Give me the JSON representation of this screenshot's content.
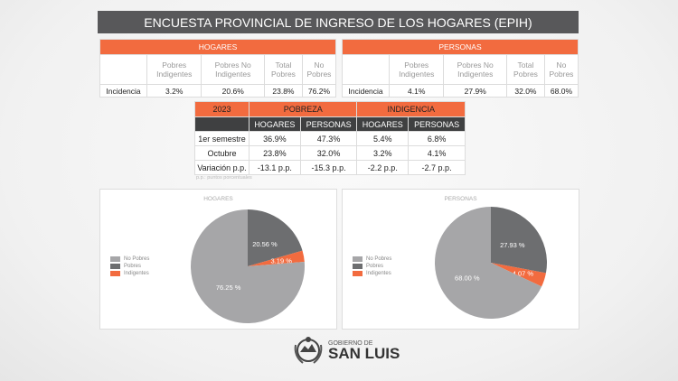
{
  "title": "ENCUESTA PROVINCIAL DE INGRESO DE LOS HOGARES (EPIH)",
  "hogares_table": {
    "header": "HOGARES",
    "columns": [
      "Pobres Indigentes",
      "Pobres No Indigentes",
      "Total Pobres",
      "No Pobres"
    ],
    "row_label": "Incidencia",
    "values": [
      "3.2%",
      "20.6%",
      "23.8%",
      "76.2%"
    ]
  },
  "personas_table": {
    "header": "PERSONAS",
    "columns": [
      "Pobres Indigentes",
      "Pobres No Indigentes",
      "Total Pobres",
      "No Pobres"
    ],
    "row_label": "Incidencia",
    "values": [
      "4.1%",
      "27.9%",
      "32.0%",
      "68.0%"
    ]
  },
  "comparison": {
    "year": "2023",
    "groups": [
      "POBREZA",
      "INDIGENCIA"
    ],
    "subcols": [
      "HOGARES",
      "PERSONAS",
      "HOGARES",
      "PERSONAS"
    ],
    "rows": [
      {
        "label": "1er semestre",
        "values": [
          "36.9%",
          "47.3%",
          "5.4%",
          "6.8%"
        ]
      },
      {
        "label": "Octubre",
        "values": [
          "23.8%",
          "32.0%",
          "3.2%",
          "4.1%"
        ]
      },
      {
        "label": "Variación p.p.",
        "values": [
          "-13.1 p.p.",
          "-15.3 p.p.",
          "-2.2 p.p.",
          "-2.7 p.p."
        ]
      }
    ],
    "note": "p.p.: puntos porcentuales"
  },
  "chart_data": [
    {
      "type": "pie",
      "title": "HOGARES",
      "legend": [
        "No Pobres",
        "Pobres",
        "Indigentes"
      ],
      "legend_placement": "left",
      "slices": [
        {
          "name": "Pobres",
          "value": 20.56,
          "label": "20.56 %",
          "color": "#6d6e70"
        },
        {
          "name": "Indigentes",
          "value": 3.19,
          "label": "3.19 %",
          "color": "#f26b3f"
        },
        {
          "name": "No Pobres",
          "value": 76.25,
          "label": "76.25 %",
          "color": "#a6a6a8"
        }
      ]
    },
    {
      "type": "pie",
      "title": "PERSONAS",
      "legend": [
        "No Pobres",
        "Pobres",
        "Indigentes"
      ],
      "legend_placement": "left",
      "slices": [
        {
          "name": "Pobres",
          "value": 27.93,
          "label": "27.93 %",
          "color": "#6d6e70"
        },
        {
          "name": "Indigentes",
          "value": 4.07,
          "label": "4.07 %",
          "color": "#f26b3f"
        },
        {
          "name": "No Pobres",
          "value": 68.0,
          "label": "68.00 %",
          "color": "#a6a6a8"
        }
      ]
    }
  ],
  "logo": {
    "line1": "GOBIERNO DE",
    "line2": "SAN LUIS"
  }
}
